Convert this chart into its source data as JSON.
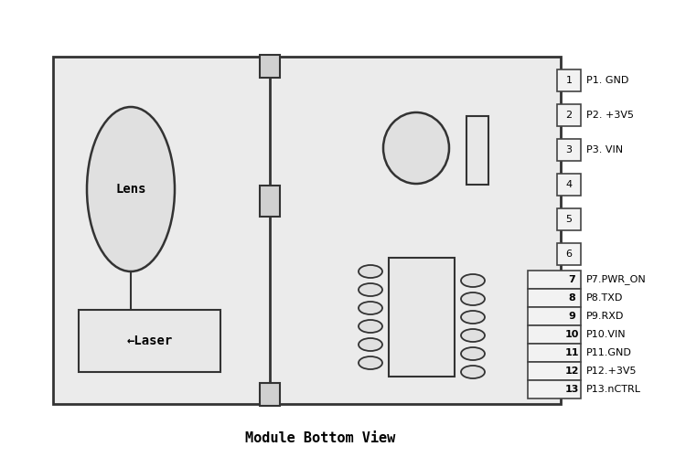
{
  "bg_color": "#ffffff",
  "board_color": "#e8e8e8",
  "board_edge_color": "#333333",
  "title": "Module Bottom View",
  "title_fontsize": 11,
  "title_font": "monospace",
  "lens_label": "Lens",
  "laser_label": "←Laser",
  "pins_right_top": [
    {
      "num": "1",
      "label": "P1. GND"
    },
    {
      "num": "2",
      "label": "P2. +3V5"
    },
    {
      "num": "3",
      "label": "P3. VIN"
    },
    {
      "num": "4",
      "label": ""
    },
    {
      "num": "5",
      "label": ""
    },
    {
      "num": "6",
      "label": ""
    }
  ],
  "pins_right_bottom": [
    {
      "num": "7",
      "label": "P7.PWR_ON"
    },
    {
      "num": "8",
      "label": "P8.TXD"
    },
    {
      "num": "9",
      "label": "P9.RXD"
    },
    {
      "num": "10",
      "label": "P10.VIN"
    },
    {
      "num": "11",
      "label": "P11.GND"
    },
    {
      "num": "12",
      "label": "P12.+3V5"
    },
    {
      "num": "13",
      "label": "P13.nCTRL"
    }
  ]
}
